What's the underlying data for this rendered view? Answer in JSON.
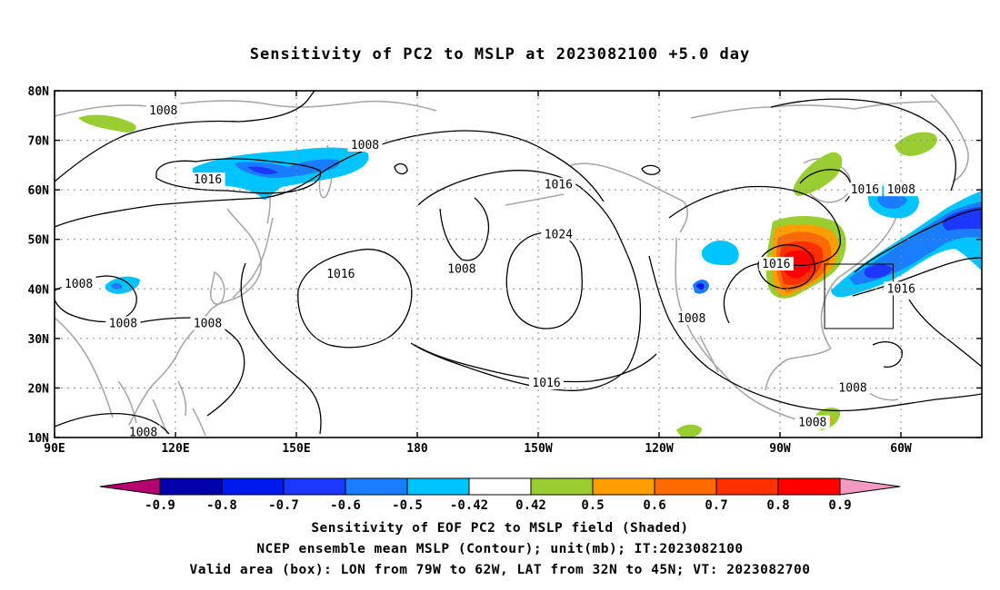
{
  "title": "Sensitivity of PC2 to MSLP at 2023082100 +5.0 day",
  "map": {
    "lat_labels": [
      "80N",
      "70N",
      "60N",
      "50N",
      "40N",
      "30N",
      "20N",
      "10N"
    ],
    "lon_labels": [
      "90E",
      "120E",
      "150E",
      "180",
      "150W",
      "120W",
      "90W",
      "60W"
    ],
    "lat_range": [
      10,
      80
    ],
    "lon_range": [
      90,
      320
    ],
    "grid": "dotted",
    "contour_labels": [
      {
        "text": "1008",
        "lon": 117,
        "lat": 76
      },
      {
        "text": "1008",
        "lon": 167,
        "lat": 69
      },
      {
        "text": "1016",
        "lon": 128,
        "lat": 62
      },
      {
        "text": "1016",
        "lon": 215,
        "lat": 61
      },
      {
        "text": "1024",
        "lon": 215,
        "lat": 51
      },
      {
        "text": "1008",
        "lon": 191,
        "lat": 44
      },
      {
        "text": "1016",
        "lon": 161,
        "lat": 43
      },
      {
        "text": "1008",
        "lon": 96,
        "lat": 41
      },
      {
        "text": "1008",
        "lon": 107,
        "lat": 33
      },
      {
        "text": "1008",
        "lon": 128,
        "lat": 33
      },
      {
        "text": "1008",
        "lon": 248,
        "lat": 34
      },
      {
        "text": "1016",
        "lon": 212,
        "lat": 21
      },
      {
        "text": "1016",
        "lon": 291,
        "lat": 60
      },
      {
        "text": "1016",
        "lon": 269,
        "lat": 45
      },
      {
        "text": "1008",
        "lon": 300,
        "lat": 60
      },
      {
        "text": "1016",
        "lon": 300,
        "lat": 40
      },
      {
        "text": "1008",
        "lon": 288,
        "lat": 20
      },
      {
        "text": "1008",
        "lon": 278,
        "lat": 13
      },
      {
        "text": "1008",
        "lon": 112,
        "lat": 11
      }
    ],
    "valid_box": {
      "lon_west": 281,
      "lon_east": 298,
      "lat_south": 32,
      "lat_north": 45
    }
  },
  "colorbar": {
    "labels": [
      "-0.9",
      "-0.8",
      "-0.7",
      "-0.6",
      "-0.5",
      "-0.42",
      "0.42",
      "0.5",
      "0.6",
      "0.7",
      "0.8",
      "0.9"
    ],
    "colors": [
      "#b4006e",
      "#0000aa",
      "#0019ee",
      "#1c38ff",
      "#1a7dff",
      "#00c4ff",
      "#ffffff",
      "#9acd32",
      "#ff9e00",
      "#ff6a00",
      "#ff3000",
      "#ff0000",
      "#f49ac2"
    ]
  },
  "footer": {
    "line1": "Sensitivity of EOF PC2 to MSLP field (Shaded)",
    "line2": "NCEP ensemble mean MSLP (Contour); unit(mb); IT:2023082100",
    "line3": "Valid area (box): LON from 79W to 62W, LAT from 32N to 45N; VT: 2023082700"
  }
}
